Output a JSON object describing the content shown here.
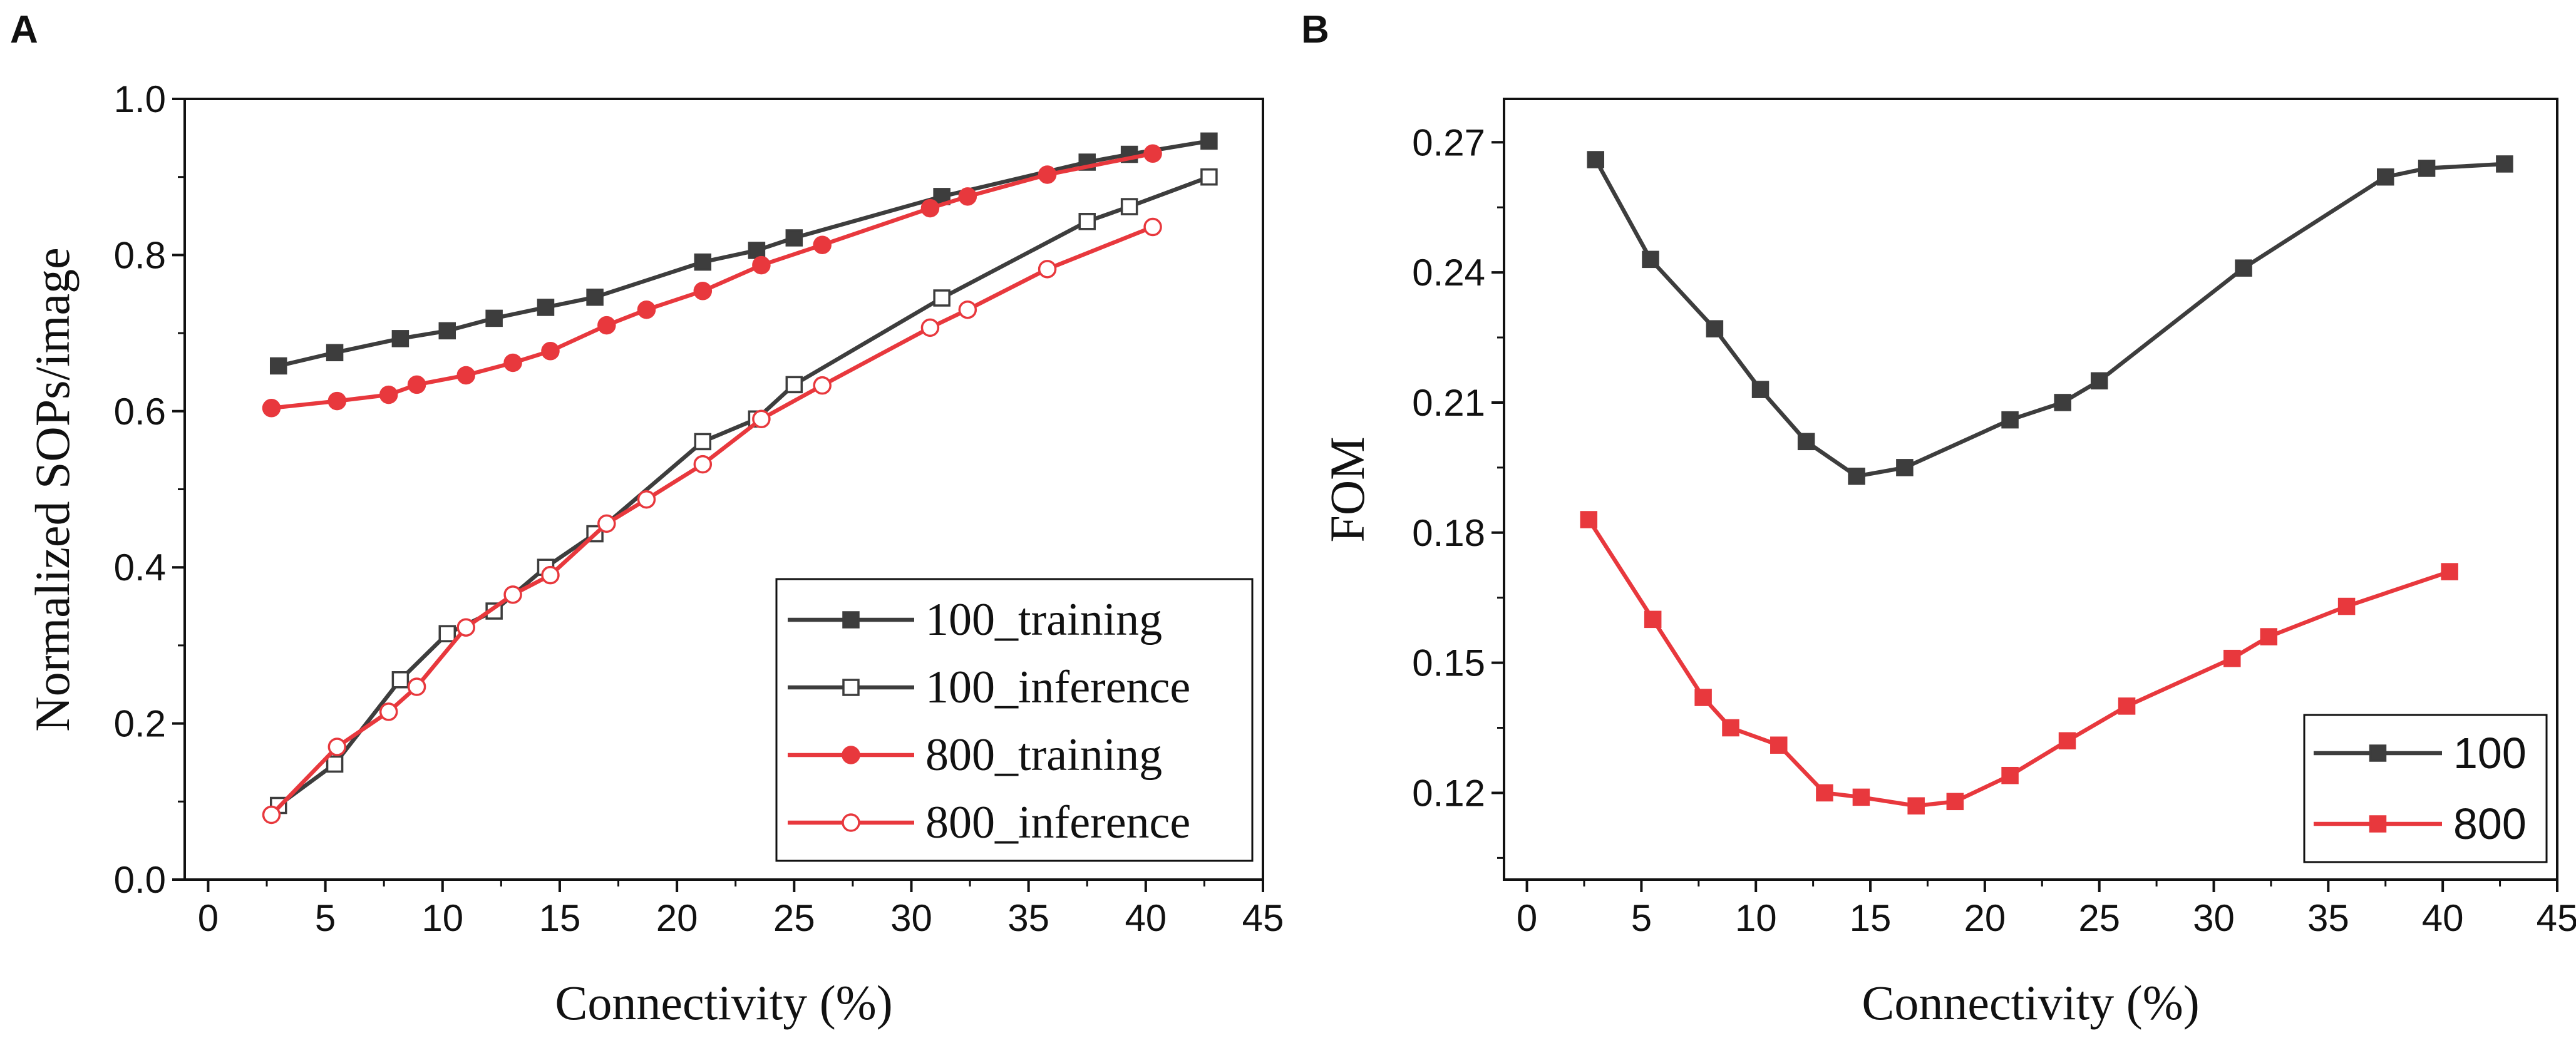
{
  "colors": {
    "dark": "#3d3d3d",
    "red": "#e8383d",
    "axis": "#111111"
  },
  "chart_data": [
    {
      "panel": "A",
      "type": "line",
      "xlabel": "Connectivity (%)",
      "ylabel": "Normalized SOPs/image",
      "xlim": [
        -1,
        45
      ],
      "ylim": [
        0.0,
        1.0
      ],
      "xticks": [
        0,
        5,
        10,
        15,
        20,
        25,
        30,
        35,
        40,
        45
      ],
      "xtick_labels": [
        "0",
        "5",
        "10",
        "15",
        "20",
        "25",
        "30",
        "35",
        "40",
        "45"
      ],
      "yticks": [
        0.0,
        0.2,
        0.4,
        0.6,
        0.8,
        1.0
      ],
      "ytick_labels": [
        "0.0",
        "0.2",
        "0.4",
        "0.6",
        "0.8",
        "1.0"
      ],
      "legend_position": "bottom-right",
      "series": [
        {
          "name": "100_training",
          "color": "#3d3d3d",
          "marker": "square",
          "filled": true,
          "x": [
            3.0,
            5.4,
            8.2,
            10.2,
            12.2,
            14.4,
            16.5,
            21.1,
            23.4,
            25.0,
            31.3,
            37.5,
            39.3,
            42.7
          ],
          "y": [
            0.658,
            0.675,
            0.693,
            0.703,
            0.719,
            0.733,
            0.746,
            0.791,
            0.806,
            0.822,
            0.875,
            0.919,
            0.929,
            0.946
          ]
        },
        {
          "name": "100_inference",
          "color": "#3d3d3d",
          "marker": "square",
          "filled": false,
          "x": [
            3.0,
            5.4,
            8.2,
            10.2,
            12.2,
            14.4,
            16.5,
            21.1,
            23.4,
            25.0,
            31.3,
            37.5,
            39.3,
            42.7
          ],
          "y": [
            0.095,
            0.148,
            0.256,
            0.315,
            0.344,
            0.4,
            0.443,
            0.561,
            0.59,
            0.634,
            0.745,
            0.843,
            0.862,
            0.9
          ]
        },
        {
          "name": "800_training",
          "color": "#e8383d",
          "marker": "circle",
          "filled": true,
          "x": [
            2.7,
            5.5,
            7.7,
            8.9,
            11.0,
            13.0,
            14.6,
            17.0,
            18.7,
            21.1,
            23.6,
            26.2,
            30.8,
            32.4,
            35.8,
            40.3
          ],
          "y": [
            0.604,
            0.613,
            0.621,
            0.634,
            0.646,
            0.662,
            0.677,
            0.71,
            0.73,
            0.754,
            0.787,
            0.813,
            0.86,
            0.875,
            0.903,
            0.93
          ]
        },
        {
          "name": "800_inference",
          "color": "#e8383d",
          "marker": "circle",
          "filled": false,
          "x": [
            2.7,
            5.5,
            7.7,
            8.9,
            11.0,
            13.0,
            14.6,
            17.0,
            18.7,
            21.1,
            23.6,
            26.2,
            30.8,
            32.4,
            35.8,
            40.3
          ],
          "y": [
            0.083,
            0.17,
            0.215,
            0.247,
            0.323,
            0.365,
            0.39,
            0.456,
            0.487,
            0.532,
            0.59,
            0.633,
            0.707,
            0.73,
            0.782,
            0.836
          ]
        }
      ]
    },
    {
      "panel": "B",
      "type": "line",
      "xlabel": "Connectivity (%)",
      "ylabel": "FOM",
      "xlim": [
        -1,
        45
      ],
      "ylim": [
        0.1,
        0.28
      ],
      "xticks": [
        0,
        5,
        10,
        15,
        20,
        25,
        30,
        35,
        40,
        45
      ],
      "xtick_labels": [
        "0",
        "5",
        "10",
        "15",
        "20",
        "25",
        "30",
        "35",
        "40",
        "45"
      ],
      "yticks": [
        0.12,
        0.15,
        0.18,
        0.21,
        0.24,
        0.27
      ],
      "ytick_labels": [
        "0.12",
        "0.15",
        "0.18",
        "0.21",
        "0.24",
        "0.27"
      ],
      "legend_position": "bottom-right",
      "series": [
        {
          "name": "100",
          "color": "#3d3d3d",
          "marker": "square",
          "filled": true,
          "x": [
            3.0,
            5.4,
            8.2,
            10.2,
            12.2,
            14.4,
            16.5,
            21.1,
            23.4,
            25.0,
            31.3,
            37.5,
            39.3,
            42.7
          ],
          "y": [
            0.266,
            0.243,
            0.227,
            0.213,
            0.201,
            0.193,
            0.195,
            0.206,
            0.21,
            0.215,
            0.241,
            0.262,
            0.264,
            0.265
          ]
        },
        {
          "name": "800",
          "color": "#e8383d",
          "marker": "square",
          "filled": true,
          "x": [
            2.7,
            5.5,
            7.7,
            8.9,
            11.0,
            13.0,
            14.6,
            17.0,
            18.7,
            21.1,
            23.6,
            26.2,
            30.8,
            32.4,
            35.8,
            40.3
          ],
          "y": [
            0.183,
            0.16,
            0.142,
            0.135,
            0.131,
            0.12,
            0.119,
            0.117,
            0.118,
            0.124,
            0.132,
            0.14,
            0.151,
            0.156,
            0.163,
            0.171
          ]
        }
      ]
    }
  ]
}
